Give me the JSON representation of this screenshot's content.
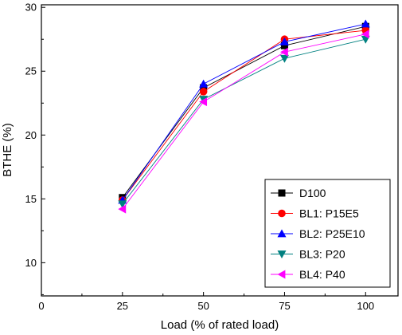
{
  "chart_data": {
    "type": "line",
    "xlabel": "Load (% of rated load)",
    "ylabel": "BTHE (%)",
    "xlim": [
      0,
      110
    ],
    "ylim": [
      7.4,
      30.2
    ],
    "xticks": [
      0,
      25,
      50,
      75,
      100
    ],
    "yticks": [
      10,
      15,
      20,
      25,
      30
    ],
    "x": [
      25,
      50,
      75,
      100
    ],
    "grid": false,
    "legend_position": "bottom-right",
    "series": [
      {
        "name": "D100",
        "marker": "square",
        "color": "#000000",
        "values": [
          15.1,
          23.7,
          27.0,
          28.5
        ]
      },
      {
        "name": "BL1: P15E5",
        "marker": "circle",
        "color": "#ff0000",
        "values": [
          14.9,
          23.4,
          27.5,
          28.2
        ]
      },
      {
        "name": "BL2: P25E10",
        "marker": "triangle-up",
        "color": "#0000ff",
        "values": [
          14.9,
          24.0,
          27.3,
          28.7
        ]
      },
      {
        "name": "BL3: P20",
        "marker": "triangle-down",
        "color": "#008080",
        "values": [
          14.6,
          22.8,
          26.0,
          27.5
        ]
      },
      {
        "name": "BL4: P40",
        "marker": "triangle-left",
        "color": "#ff00ff",
        "values": [
          14.2,
          22.6,
          26.5,
          27.9
        ]
      }
    ]
  }
}
